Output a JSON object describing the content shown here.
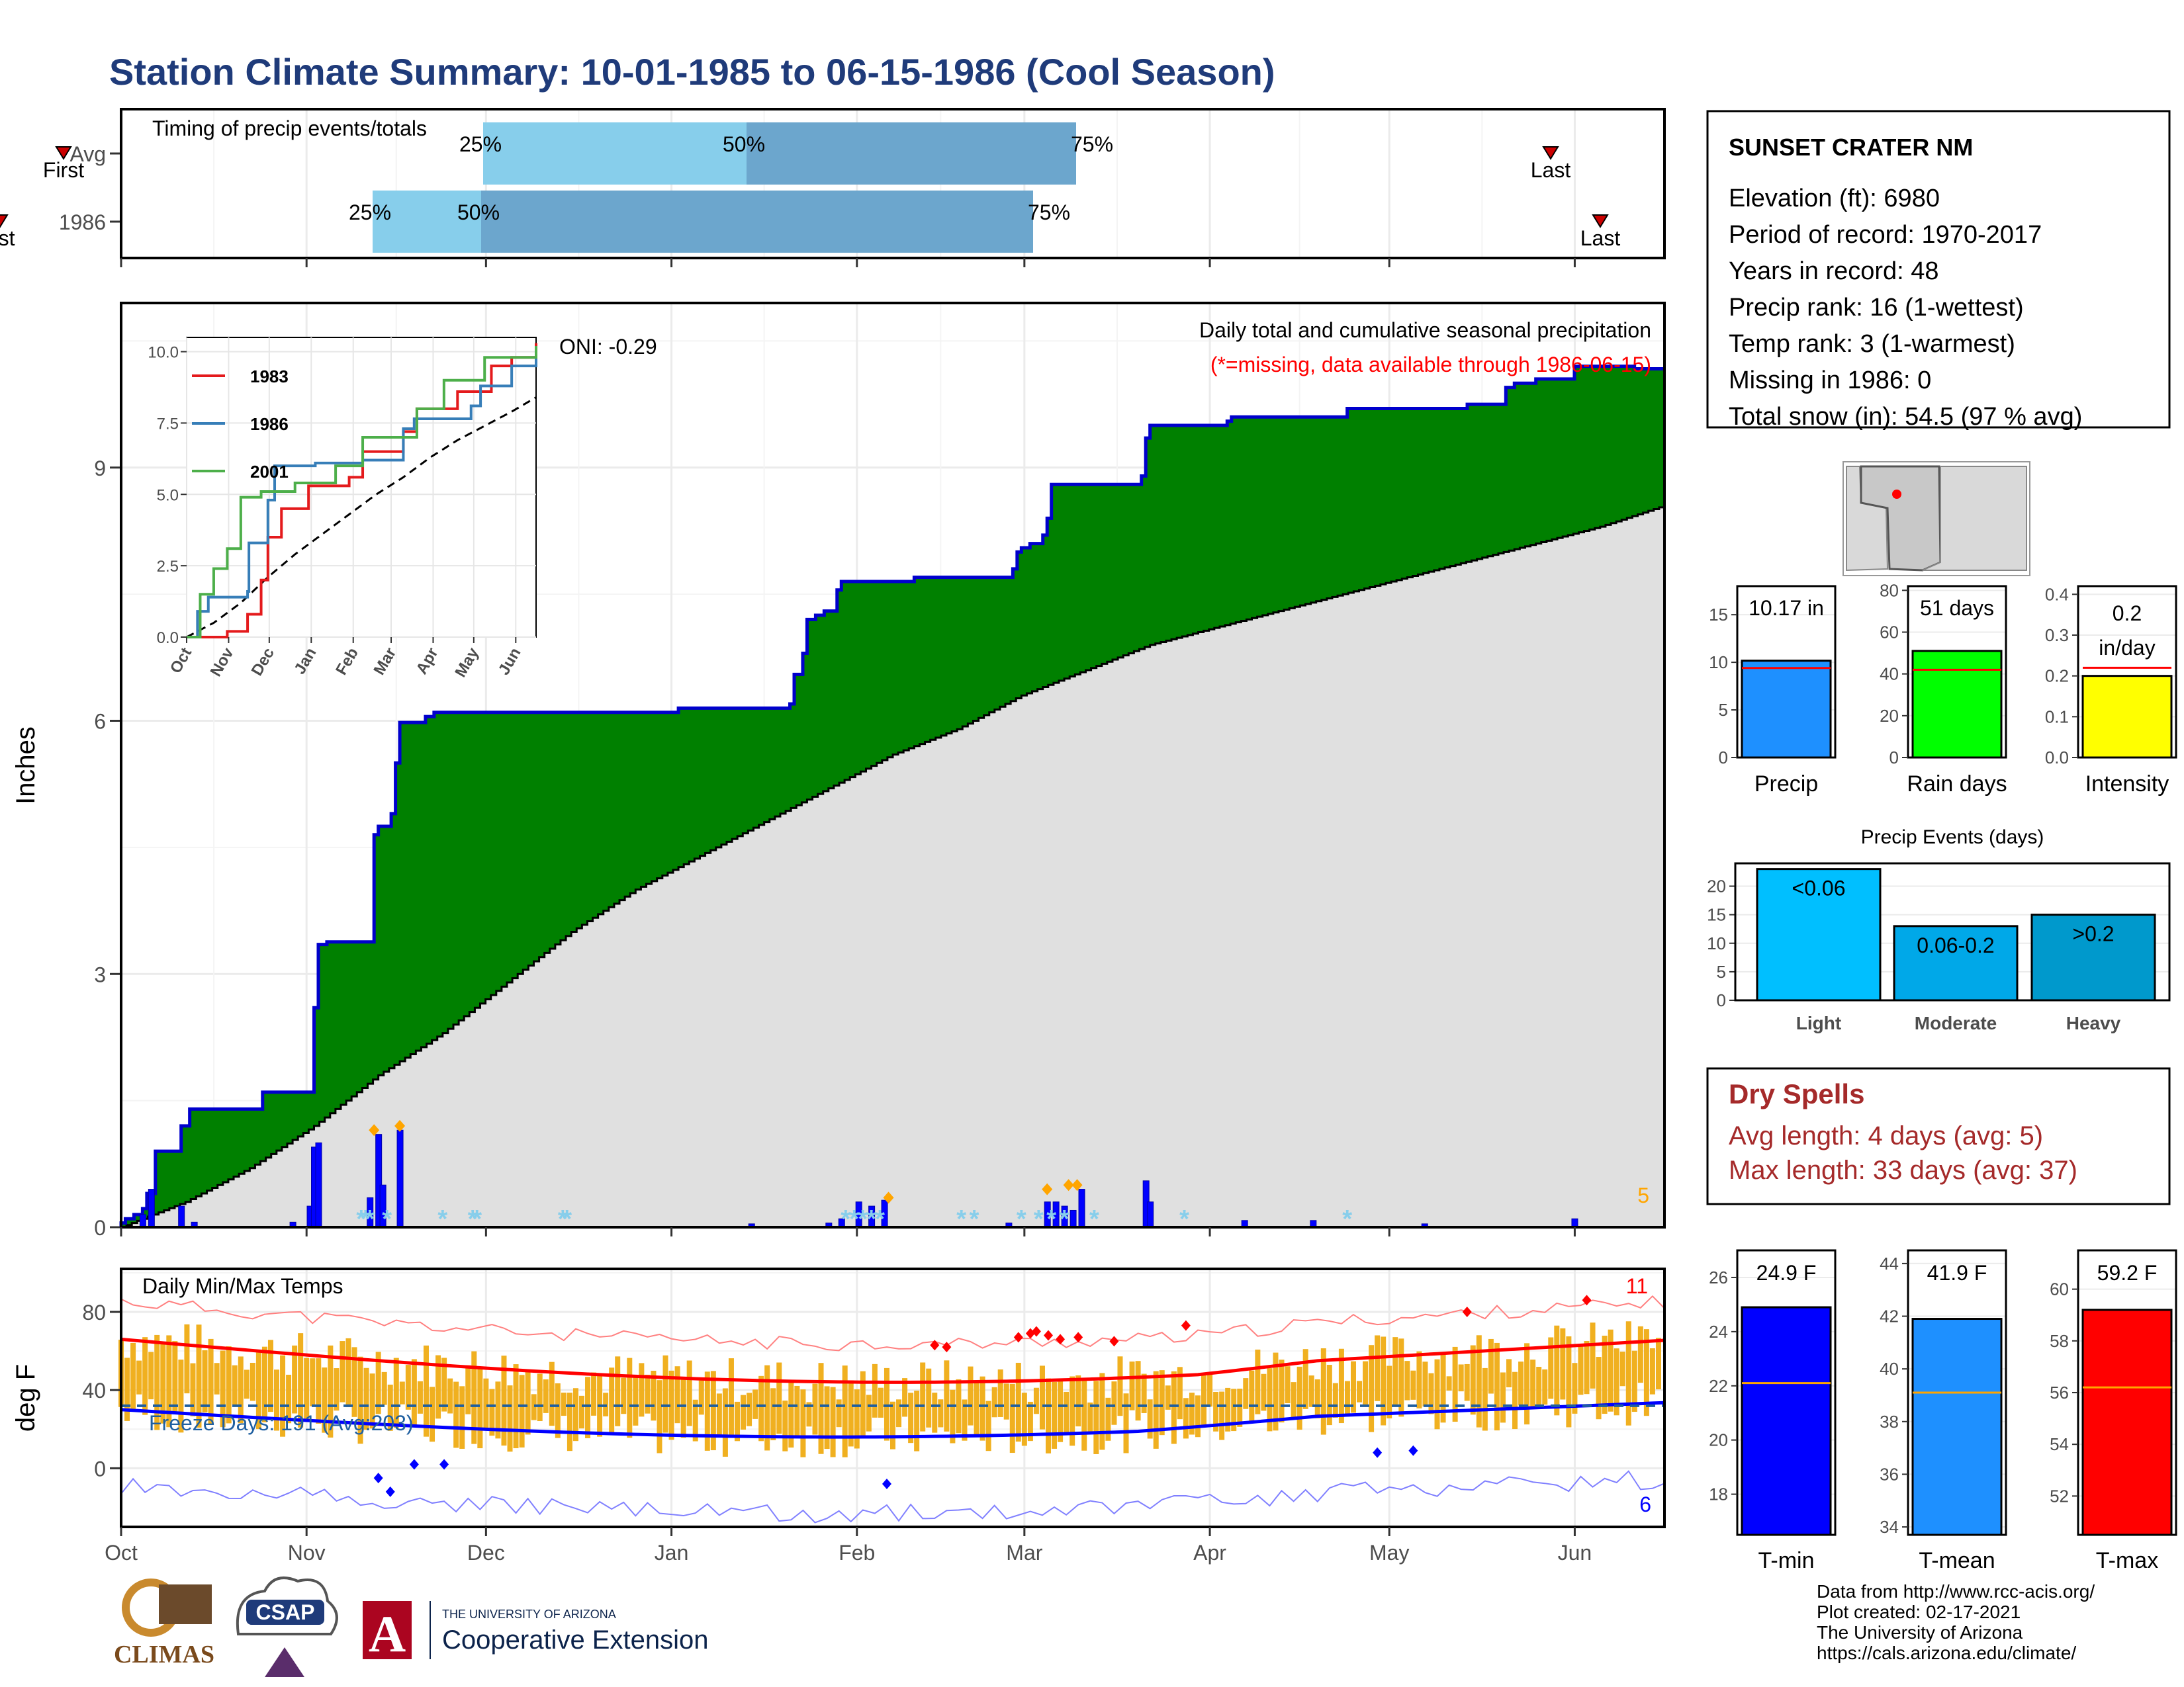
{
  "title": "Station Climate Summary: 10-01-1985 to 06-15-1986 (Cool Season)",
  "months": [
    "Oct",
    "Nov",
    "Dec",
    "Jan",
    "Feb",
    "Mar",
    "Apr",
    "May",
    "Jun"
  ],
  "colors": {
    "title": "#1f3b7a",
    "cum_obs": "#008000",
    "cum_line": "#0000cc",
    "cum_avg": "#e0e0e0",
    "daily_bar": "#0000ff",
    "snow": "#87ceeb",
    "temp_bar": "#f0b020",
    "tmax_avg": "#ff0000",
    "tmin_avg": "#0000ff",
    "red_marker": "#ff0000",
    "orange_marker": "#ffa500",
    "bar_light": "#00bfff",
    "bar_moderate": "#00a8e8",
    "bar_heavy": "#0099cc",
    "timing_light": "#87ceeb",
    "timing_dark": "#6ca6cd",
    "dry_spell": "#a52a2a"
  },
  "timing": {
    "label": "Timing of precip events/totals",
    "rows": [
      {
        "name": "Avg",
        "first_label": "First",
        "last_label": "Last",
        "p25": "25%",
        "p50": "50%",
        "p75": "75%"
      },
      {
        "name": "1986",
        "first_label": "First",
        "last_label": "Last",
        "p25": "25%",
        "p50": "50%",
        "p75": "75%"
      }
    ]
  },
  "precip": {
    "ylabel": "Inches",
    "y_ticks": [
      "0",
      "3",
      "6",
      "9"
    ],
    "label_main": "Daily total and cumulative seasonal precipitation",
    "label_missing": "(*=missing, data available through 1986-06-15)",
    "oni": "ONI: -0.29",
    "record_count": "5",
    "cumulative_steps": [
      [
        0,
        0.05
      ],
      [
        1,
        0.1
      ],
      [
        3,
        0.15
      ],
      [
        5,
        0.22
      ],
      [
        6,
        0.4
      ],
      [
        8,
        0.9
      ],
      [
        14,
        1.2
      ],
      [
        16,
        1.4
      ],
      [
        33,
        1.6
      ],
      [
        44,
        1.6
      ],
      [
        45,
        2.6
      ],
      [
        46,
        3.35
      ],
      [
        48,
        3.38
      ],
      [
        58,
        3.38
      ],
      [
        59,
        4.65
      ],
      [
        60,
        4.75
      ],
      [
        63,
        4.9
      ],
      [
        64,
        5.5
      ],
      [
        65,
        5.98
      ],
      [
        71,
        6.05
      ],
      [
        73,
        6.1
      ],
      [
        95,
        6.1
      ],
      [
        130,
        6.15
      ],
      [
        156,
        6.2
      ],
      [
        157,
        6.55
      ],
      [
        159,
        6.8
      ],
      [
        160,
        7.2
      ],
      [
        162,
        7.25
      ],
      [
        164,
        7.3
      ],
      [
        167,
        7.55
      ],
      [
        168,
        7.65
      ],
      [
        183,
        7.65
      ],
      [
        185,
        7.7
      ],
      [
        197,
        7.7
      ],
      [
        208,
        7.8
      ],
      [
        209,
        8.0
      ],
      [
        210,
        8.05
      ],
      [
        212,
        8.1
      ],
      [
        215,
        8.2
      ],
      [
        216,
        8.4
      ],
      [
        217,
        8.8
      ],
      [
        229,
        8.8
      ],
      [
        232,
        8.8
      ],
      [
        238,
        8.9
      ],
      [
        239,
        9.35
      ],
      [
        240,
        9.5
      ],
      [
        250,
        9.5
      ],
      [
        258,
        9.55
      ],
      [
        259,
        9.6
      ],
      [
        285,
        9.6
      ],
      [
        286,
        9.7
      ],
      [
        307,
        9.7
      ],
      [
        314,
        9.75
      ],
      [
        322,
        9.75
      ],
      [
        323,
        9.95
      ],
      [
        325,
        10.0
      ],
      [
        330,
        10.05
      ],
      [
        339,
        10.2
      ],
      [
        350,
        10.2
      ],
      [
        353,
        10.17
      ],
      [
        360,
        10.17
      ]
    ],
    "avg_points": [
      [
        0,
        0
      ],
      [
        15,
        0.3
      ],
      [
        30,
        0.7
      ],
      [
        45,
        1.2
      ],
      [
        60,
        1.8
      ],
      [
        75,
        2.3
      ],
      [
        90,
        2.9
      ],
      [
        105,
        3.5
      ],
      [
        120,
        4.0
      ],
      [
        135,
        4.4
      ],
      [
        150,
        4.8
      ],
      [
        165,
        5.2
      ],
      [
        180,
        5.6
      ],
      [
        195,
        5.9
      ],
      [
        210,
        6.3
      ],
      [
        225,
        6.6
      ],
      [
        240,
        6.9
      ],
      [
        255,
        7.1
      ],
      [
        270,
        7.3
      ],
      [
        285,
        7.5
      ],
      [
        300,
        7.7
      ],
      [
        315,
        7.9
      ],
      [
        330,
        8.1
      ],
      [
        345,
        8.3
      ],
      [
        360,
        8.55
      ]
    ],
    "daily_bars": [
      [
        5,
        0.15
      ],
      [
        7,
        0.45
      ],
      [
        14,
        0.25
      ],
      [
        17,
        0.06
      ],
      [
        40,
        0.06
      ],
      [
        44,
        0.25
      ],
      [
        45,
        0.95
      ],
      [
        46,
        1.0
      ],
      [
        58,
        0.35
      ],
      [
        60,
        1.1
      ],
      [
        61,
        0.5
      ],
      [
        65,
        1.15
      ],
      [
        147,
        0.04
      ],
      [
        165,
        0.05
      ],
      [
        168,
        0.1
      ],
      [
        172,
        0.3
      ],
      [
        175,
        0.25
      ],
      [
        178,
        0.32
      ],
      [
        207,
        0.05
      ],
      [
        216,
        0.3
      ],
      [
        218,
        0.3
      ],
      [
        220,
        0.25
      ],
      [
        222,
        0.2
      ],
      [
        224,
        0.45
      ],
      [
        239,
        0.55
      ],
      [
        240,
        0.3
      ],
      [
        262,
        0.08
      ],
      [
        278,
        0.08
      ],
      [
        304,
        0.04
      ],
      [
        339,
        0.1
      ]
    ],
    "orange_diamonds": [
      [
        59,
        1.15
      ],
      [
        65,
        1.2
      ],
      [
        179,
        0.35
      ],
      [
        216,
        0.45
      ],
      [
        221,
        0.5
      ],
      [
        223,
        0.5
      ]
    ],
    "snow_days": [
      56,
      57,
      58,
      62,
      75,
      82,
      83,
      103,
      104,
      169,
      171,
      173,
      175,
      177,
      196,
      199,
      210,
      214,
      217,
      220,
      227,
      248,
      286
    ]
  },
  "inset": {
    "years": [
      {
        "name": "1983",
        "color": "#e41a1c"
      },
      {
        "name": "1986",
        "color": "#377eb8"
      },
      {
        "name": "2001",
        "color": "#4daf4a"
      }
    ],
    "y_ticks": [
      "0.0",
      "2.5",
      "5.0",
      "7.5",
      "10.0"
    ],
    "x_ticks": [
      "Oct",
      "Nov",
      "Dec",
      "Jan",
      "Feb",
      "Mar",
      "Apr",
      "May",
      "Jun"
    ]
  },
  "temps": {
    "ylabel": "deg F",
    "label": "Daily Min/Max Temps",
    "freeze_label": "Freeze Days: 191 (Avg:203)",
    "y_ticks": [
      "0",
      "40",
      "80"
    ],
    "record_high_count": "11",
    "record_low_count": "6"
  },
  "station": {
    "name": "SUNSET CRATER NM",
    "lines": [
      "Elevation (ft): 6980",
      "Period of record: 1970-2017",
      "Years in record: 48",
      "Precip rank: 16 (1-wettest)",
      "Temp rank: 3 (1-warmest)",
      "Missing in 1986: 0",
      "Total snow (in): 54.5 (97 % avg)"
    ]
  },
  "mini_bars": [
    {
      "label": "Precip",
      "value_label": "10.17 in",
      "value": 10.17,
      "avg": 9.4,
      "ymax": 18,
      "ticks": [
        0,
        5,
        10,
        15
      ],
      "color": "#1e90ff"
    },
    {
      "label": "Rain days",
      "value_label": "51 days",
      "value": 51,
      "avg": 42,
      "ymax": 82,
      "ticks": [
        0,
        20,
        40,
        60,
        80
      ],
      "color": "#00ff00"
    },
    {
      "label": "Intensity",
      "value_label": "0.2 in/day",
      "value": 0.2,
      "avg": 0.22,
      "ymax": 0.42,
      "ticks": [
        0.0,
        0.1,
        0.2,
        0.3,
        0.4
      ],
      "color": "#ffff00"
    }
  ],
  "precip_events": {
    "title": "Precip Events (days)",
    "categories": [
      "Light",
      "Moderate",
      "Heavy"
    ],
    "bar_labels": [
      "<0.06",
      "0.06-0.2",
      ">0.2"
    ],
    "values": [
      23,
      13,
      15
    ],
    "y_ticks": [
      0,
      5,
      10,
      15,
      20
    ],
    "ymax": 24
  },
  "dry_spells": {
    "title": "Dry Spells",
    "avg_line": "Avg length: 4 days (avg: 5)",
    "max_line": "Max length: 33 days (avg: 37)"
  },
  "temp_bars": [
    {
      "label": "T-min",
      "value_label": "24.9 F",
      "value": 24.9,
      "avg": 22.1,
      "ymin": 16.5,
      "ymax": 27,
      "ticks": [
        18,
        20,
        22,
        24,
        26
      ],
      "color": "#0000ff"
    },
    {
      "label": "T-mean",
      "value_label": "41.9 F",
      "value": 41.9,
      "avg": 39.1,
      "ymin": 33.7,
      "ymax": 44.5,
      "ticks": [
        34,
        36,
        38,
        40,
        42,
        44
      ],
      "color": "#1e90ff"
    },
    {
      "label": "T-max",
      "value_label": "59.2 F",
      "value": 59.2,
      "avg": 56.2,
      "ymin": 50.5,
      "ymax": 61.5,
      "ticks": [
        52,
        54,
        56,
        58,
        60
      ],
      "color": "#ff0000"
    }
  ],
  "footer": [
    "Data from http://www.rcc-acis.org/",
    "Plot created: 02-17-2021",
    "The University of Arizona",
    "https://cals.arizona.edu/climate/"
  ],
  "logos": {
    "climas": "CLIMAS",
    "csap": "CSAP",
    "ua_small": "THE UNIVERSITY OF ARIZONA",
    "ua_big": "Cooperative Extension"
  }
}
